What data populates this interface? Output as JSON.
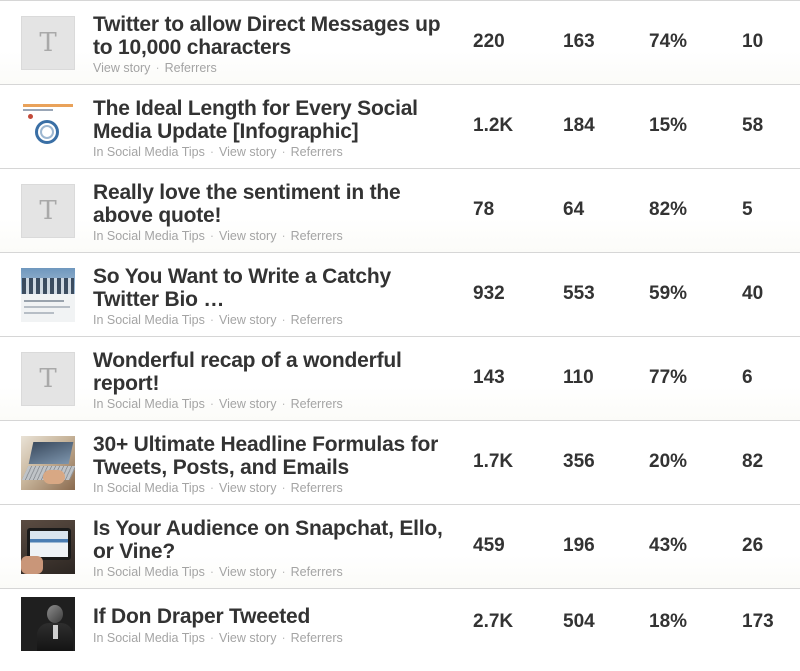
{
  "rows": [
    {
      "title": "Twitter to allow Direct Messages up to 10,000 characters",
      "thumb": "placeholder",
      "thumb_letter": "T",
      "category": "",
      "view_label": "View story",
      "referrers_label": "Referrers",
      "stats": [
        "220",
        "163",
        "74%",
        "10"
      ]
    },
    {
      "title": "The Ideal Length for Every Social Media Update [Infographic]",
      "thumb": "infographic",
      "category": "In Social Media Tips",
      "view_label": "View story",
      "referrers_label": "Referrers",
      "stats": [
        "1.2K",
        "184",
        "15%",
        "58"
      ]
    },
    {
      "title": "Really love the sentiment in the above quote!",
      "thumb": "placeholder",
      "thumb_letter": "T",
      "category": "In Social Media Tips",
      "view_label": "View story",
      "referrers_label": "Referrers",
      "stats": [
        "78",
        "64",
        "82%",
        "5"
      ]
    },
    {
      "title": "So You Want to Write a Catchy Twitter Bio …",
      "thumb": "group-photo",
      "category": "In Social Media Tips",
      "view_label": "View story",
      "referrers_label": "Referrers",
      "stats": [
        "932",
        "553",
        "59%",
        "40"
      ]
    },
    {
      "title": "Wonderful recap of a wonderful report!",
      "thumb": "placeholder",
      "thumb_letter": "T",
      "category": "In Social Media Tips",
      "view_label": "View story",
      "referrers_label": "Referrers",
      "stats": [
        "143",
        "110",
        "77%",
        "6"
      ]
    },
    {
      "title": "30+ Ultimate Headline Formulas for Tweets, Posts, and Emails",
      "thumb": "laptop-photo",
      "category": "In Social Media Tips",
      "view_label": "View story",
      "referrers_label": "Referrers",
      "stats": [
        "1.7K",
        "356",
        "20%",
        "82"
      ]
    },
    {
      "title": "Is Your Audience on Snapchat, Ello, or Vine?",
      "thumb": "tablet-photo",
      "category": "In Social Media Tips",
      "view_label": "View story",
      "referrers_label": "Referrers",
      "stats": [
        "459",
        "196",
        "43%",
        "26"
      ]
    },
    {
      "title": "If Don Draper Tweeted",
      "thumb": "portrait-photo",
      "category": "In Social Media Tips",
      "view_label": "View story",
      "referrers_label": "Referrers",
      "stats": [
        "2.7K",
        "504",
        "18%",
        "173"
      ]
    }
  ],
  "colors": {
    "title": "#333333",
    "meta": "#a4a4a4",
    "divider": "#d6d6d6",
    "placeholder_bg": "#e4e4e4"
  }
}
